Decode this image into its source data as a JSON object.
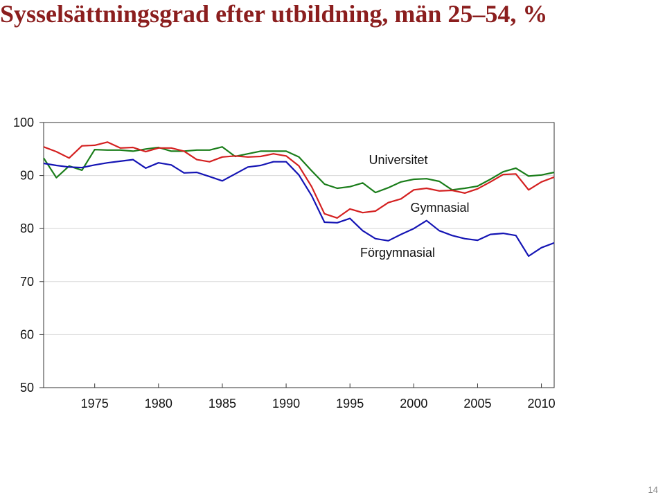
{
  "chart_data": {
    "type": "line",
    "title": "Sysselsättningsgrad efter utbildning, män 25–54, %",
    "x": [
      1971,
      1972,
      1973,
      1974,
      1975,
      1976,
      1977,
      1978,
      1979,
      1980,
      1981,
      1982,
      1983,
      1984,
      1985,
      1986,
      1987,
      1988,
      1989,
      1990,
      1991,
      1992,
      1993,
      1994,
      1995,
      1996,
      1997,
      1998,
      1999,
      2000,
      2001,
      2002,
      2003,
      2004,
      2005,
      2006,
      2007,
      2008,
      2009,
      2010,
      2011
    ],
    "series": [
      {
        "name": "Universitet",
        "color": "#1a7d1a",
        "values": [
          93.3,
          89.6,
          91.8,
          91.0,
          94.9,
          94.8,
          94.8,
          94.6,
          95.0,
          95.3,
          94.6,
          94.6,
          94.8,
          94.8,
          95.4,
          93.6,
          94.1,
          94.6,
          94.6,
          94.6,
          93.5,
          90.9,
          88.4,
          87.6,
          87.9,
          88.6,
          86.8,
          87.7,
          88.8,
          89.3,
          89.4,
          88.9,
          87.3,
          87.6,
          88.0,
          89.3,
          90.7,
          91.4,
          89.9,
          90.1,
          90.6
        ]
      },
      {
        "name": "Gymnasial",
        "color": "#d42020",
        "values": [
          95.4,
          94.5,
          93.3,
          95.6,
          95.7,
          96.3,
          95.2,
          95.3,
          94.5,
          95.2,
          95.2,
          94.6,
          93.0,
          92.6,
          93.5,
          93.7,
          93.5,
          93.6,
          94.1,
          93.7,
          91.8,
          87.9,
          82.8,
          82.0,
          83.7,
          83.0,
          83.3,
          84.9,
          85.6,
          87.3,
          87.6,
          87.1,
          87.2,
          86.7,
          87.5,
          88.8,
          90.2,
          90.3,
          87.3,
          88.8,
          89.7
        ]
      },
      {
        "name": "Förgymnasial",
        "color": "#1414b4",
        "values": [
          92.3,
          91.9,
          91.6,
          91.5,
          92.0,
          92.4,
          92.7,
          93.0,
          91.4,
          92.4,
          92.0,
          90.5,
          90.6,
          89.8,
          89.0,
          90.3,
          91.6,
          91.9,
          92.6,
          92.6,
          90.1,
          86.2,
          81.2,
          81.1,
          81.9,
          79.6,
          78.1,
          77.7,
          78.9,
          80.0,
          81.5,
          79.6,
          78.7,
          78.1,
          77.8,
          78.9,
          79.1,
          78.7,
          74.8,
          76.4,
          77.3
        ]
      }
    ],
    "xlim": [
      1971,
      2011
    ],
    "xticks": [
      1975,
      1980,
      1985,
      1990,
      1995,
      2000,
      2005,
      2010
    ],
    "ylim": [
      50,
      100
    ],
    "yticks": [
      50,
      60,
      70,
      80,
      90,
      100
    ],
    "grid": true
  },
  "page_number": "14"
}
